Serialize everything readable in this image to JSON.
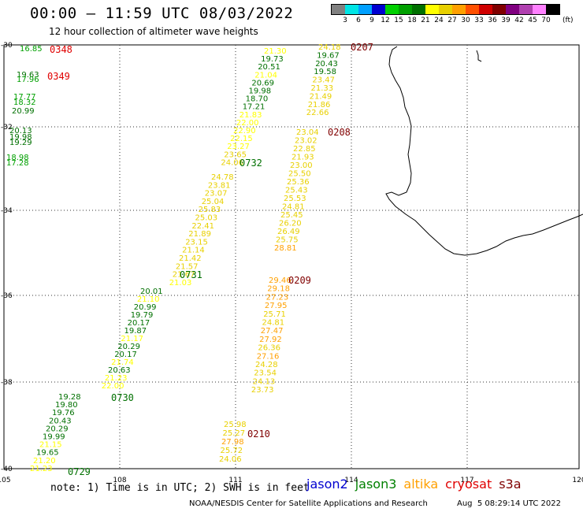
{
  "title": "00:00 – 11:59 UTC 08/03/2022",
  "subtitle": "12 hour collection of altimeter wave heights",
  "legend": {
    "labels": [
      "3",
      "6",
      "9",
      "12",
      "15",
      "18",
      "21",
      "24",
      "27",
      "30",
      "33",
      "36",
      "39",
      "42",
      "45",
      "70"
    ],
    "unit": "(ft)",
    "colors": [
      "#808080",
      "#00e5e5",
      "#00a0ff",
      "#0000d0",
      "#00d000",
      "#00a000",
      "#007000",
      "#ffff00",
      "#e8d000",
      "#ffa000",
      "#ff5000",
      "#d00000",
      "#800000",
      "#800080",
      "#b040b0",
      "#ff80ff",
      "#000000"
    ]
  },
  "axes": {
    "lon_labels": [
      "105",
      "108",
      "111",
      "114",
      "117",
      "120"
    ],
    "lat_labels": [
      "-30",
      "-32",
      "-34",
      "-36",
      "-38",
      "-40"
    ]
  },
  "tracks": [
    {
      "name": "0348",
      "sat": "cryosat",
      "points": [
        {
          "v": "16.85",
          "c": "#00a000"
        }
      ]
    },
    {
      "name": "0349",
      "sat": "cryosat",
      "points": [
        {
          "v": "19.63",
          "c": "#007000"
        },
        {
          "v": "17.96",
          "c": "#00a000"
        },
        {
          "v": "17.77",
          "c": "#00a000"
        },
        {
          "v": "18.32",
          "c": "#00a000"
        },
        {
          "v": "20.99",
          "c": "#007000"
        },
        {
          "v": "20.13",
          "c": "#007000"
        },
        {
          "v": "19.98",
          "c": "#007000"
        },
        {
          "v": "19.29",
          "c": "#007000"
        },
        {
          "v": "18.98",
          "c": "#00a000"
        },
        {
          "v": "17.28",
          "c": "#00a000"
        }
      ]
    },
    {
      "name": "0732",
      "sat": "jason3",
      "points": [
        {
          "v": "21.30",
          "c": "#ffff00"
        },
        {
          "v": "19.73",
          "c": "#007000"
        },
        {
          "v": "20.51",
          "c": "#007000"
        },
        {
          "v": "21.04",
          "c": "#ffff00"
        },
        {
          "v": "20.69",
          "c": "#007000"
        },
        {
          "v": "19.98",
          "c": "#007000"
        },
        {
          "v": "18.70",
          "c": "#007000"
        },
        {
          "v": "17.21",
          "c": "#007000"
        },
        {
          "v": "21.83",
          "c": "#ffff00"
        },
        {
          "v": "22.00",
          "c": "#ffff00"
        },
        {
          "v": "22.90",
          "c": "#ffff00"
        },
        {
          "v": "22.15",
          "c": "#ffff00"
        },
        {
          "v": "23.27",
          "c": "#ffff00"
        },
        {
          "v": "23.65",
          "c": "#e8d000"
        },
        {
          "v": "24.06",
          "c": "#e8d000"
        }
      ]
    },
    {
      "name": "0731",
      "sat": "jason3",
      "points": [
        {
          "v": "24.78",
          "c": "#e8d000"
        },
        {
          "v": "23.81",
          "c": "#e8d000"
        },
        {
          "v": "23.07",
          "c": "#e8d000"
        },
        {
          "v": "25.04",
          "c": "#e8d000"
        },
        {
          "v": "25.83",
          "c": "#e8d000"
        },
        {
          "v": "25.03",
          "c": "#e8d000"
        },
        {
          "v": "22.41",
          "c": "#e8d000"
        },
        {
          "v": "21.89",
          "c": "#e8d000"
        },
        {
          "v": "23.15",
          "c": "#e8d000"
        },
        {
          "v": "21.14",
          "c": "#e8d000"
        },
        {
          "v": "21.42",
          "c": "#e8d000"
        },
        {
          "v": "21.57",
          "c": "#e8d000"
        },
        {
          "v": "21.67",
          "c": "#e8d000"
        },
        {
          "v": "21.03",
          "c": "#ffff00"
        }
      ]
    },
    {
      "name": "0730",
      "sat": "jason3",
      "points": [
        {
          "v": "20.01",
          "c": "#007000"
        },
        {
          "v": "21.10",
          "c": "#ffff00"
        },
        {
          "v": "20.99",
          "c": "#007000"
        },
        {
          "v": "19.79",
          "c": "#007000"
        },
        {
          "v": "20.17",
          "c": "#007000"
        },
        {
          "v": "19.87",
          "c": "#007000"
        },
        {
          "v": "21.17",
          "c": "#ffff00"
        },
        {
          "v": "20.29",
          "c": "#007000"
        },
        {
          "v": "20.17",
          "c": "#007000"
        },
        {
          "v": "21.74",
          "c": "#ffff00"
        },
        {
          "v": "20.63",
          "c": "#007000"
        },
        {
          "v": "21.23",
          "c": "#ffff00"
        },
        {
          "v": "22.00",
          "c": "#ffff00"
        }
      ]
    },
    {
      "name": "0729",
      "sat": "jason3",
      "points": [
        {
          "v": "19.28",
          "c": "#007000"
        },
        {
          "v": "19.80",
          "c": "#007000"
        },
        {
          "v": "19.76",
          "c": "#007000"
        },
        {
          "v": "20.43",
          "c": "#007000"
        },
        {
          "v": "20.29",
          "c": "#007000"
        },
        {
          "v": "19.99",
          "c": "#007000"
        },
        {
          "v": "21.15",
          "c": "#ffff00"
        },
        {
          "v": "19.65",
          "c": "#007000"
        },
        {
          "v": "21.20",
          "c": "#ffff00"
        },
        {
          "v": "21.23",
          "c": "#ffff00"
        }
      ]
    },
    {
      "name": "0207",
      "sat": "cryosat",
      "points": [
        {
          "v": "24.18",
          "c": "#e8d000"
        },
        {
          "v": "19.67",
          "c": "#007000"
        },
        {
          "v": "20.43",
          "c": "#007000"
        },
        {
          "v": "19.58",
          "c": "#007000"
        },
        {
          "v": "23.47",
          "c": "#e8d000"
        },
        {
          "v": "21.33",
          "c": "#e8d000"
        },
        {
          "v": "21.49",
          "c": "#e8d000"
        },
        {
          "v": "21.86",
          "c": "#e8d000"
        },
        {
          "v": "22.66",
          "c": "#e8d000"
        }
      ]
    },
    {
      "name": "0208",
      "sat": "cryosat",
      "points": [
        {
          "v": "23.04",
          "c": "#e8d000"
        },
        {
          "v": "23.02",
          "c": "#e8d000"
        },
        {
          "v": "22.85",
          "c": "#e8d000"
        },
        {
          "v": "21.93",
          "c": "#e8d000"
        },
        {
          "v": "23.00",
          "c": "#e8d000"
        },
        {
          "v": "25.50",
          "c": "#e8d000"
        },
        {
          "v": "25.36",
          "c": "#e8d000"
        },
        {
          "v": "25.43",
          "c": "#e8d000"
        },
        {
          "v": "25.53",
          "c": "#e8d000"
        },
        {
          "v": "24.81",
          "c": "#e8d000"
        },
        {
          "v": "25.45",
          "c": "#e8d000"
        },
        {
          "v": "26.20",
          "c": "#e8d000"
        },
        {
          "v": "26.49",
          "c": "#e8d000"
        },
        {
          "v": "25.75",
          "c": "#e8d000"
        },
        {
          "v": "28.81",
          "c": "#ffa000"
        }
      ]
    },
    {
      "name": "0209",
      "sat": "cryosat",
      "points": [
        {
          "v": "29.46",
          "c": "#ffa000"
        },
        {
          "v": "29.18",
          "c": "#ffa000"
        },
        {
          "v": "27.23",
          "c": "#ffa000"
        },
        {
          "v": "27.95",
          "c": "#ffa000"
        },
        {
          "v": "25.71",
          "c": "#e8d000"
        },
        {
          "v": "24.81",
          "c": "#e8d000"
        },
        {
          "v": "27.47",
          "c": "#ffa000"
        },
        {
          "v": "27.92",
          "c": "#ffa000"
        },
        {
          "v": "26.36",
          "c": "#e8d000"
        },
        {
          "v": "27.16",
          "c": "#ffa000"
        },
        {
          "v": "24.28",
          "c": "#e8d000"
        },
        {
          "v": "23.54",
          "c": "#e8d000"
        },
        {
          "v": "24.13",
          "c": "#e8d000"
        },
        {
          "v": "23.73",
          "c": "#e8d000"
        }
      ]
    },
    {
      "name": "0210",
      "sat": "cryosat",
      "points": [
        {
          "v": "25.98",
          "c": "#e8d000"
        },
        {
          "v": "25.27",
          "c": "#e8d000"
        },
        {
          "v": "27.98",
          "c": "#ffa000"
        },
        {
          "v": "25.72",
          "c": "#e8d000"
        },
        {
          "v": "24.06",
          "c": "#e8d000"
        }
      ]
    }
  ],
  "note": "note: 1) Time is in UTC; 2) SWH is in feet",
  "satellites": [
    {
      "name": "jason2",
      "color": "#0000d0"
    },
    {
      "name": "jason3",
      "color": "#008000"
    },
    {
      "name": "altika",
      "color": "#ffa000"
    },
    {
      "name": "cryosat",
      "color": "#e00000"
    },
    {
      "name": "s3a",
      "color": "#800000"
    }
  ],
  "credit": "NOAA/NESDIS Center for Satellite Applications and Research",
  "timestamp": "Aug  5 08:29:14 UTC 2022"
}
